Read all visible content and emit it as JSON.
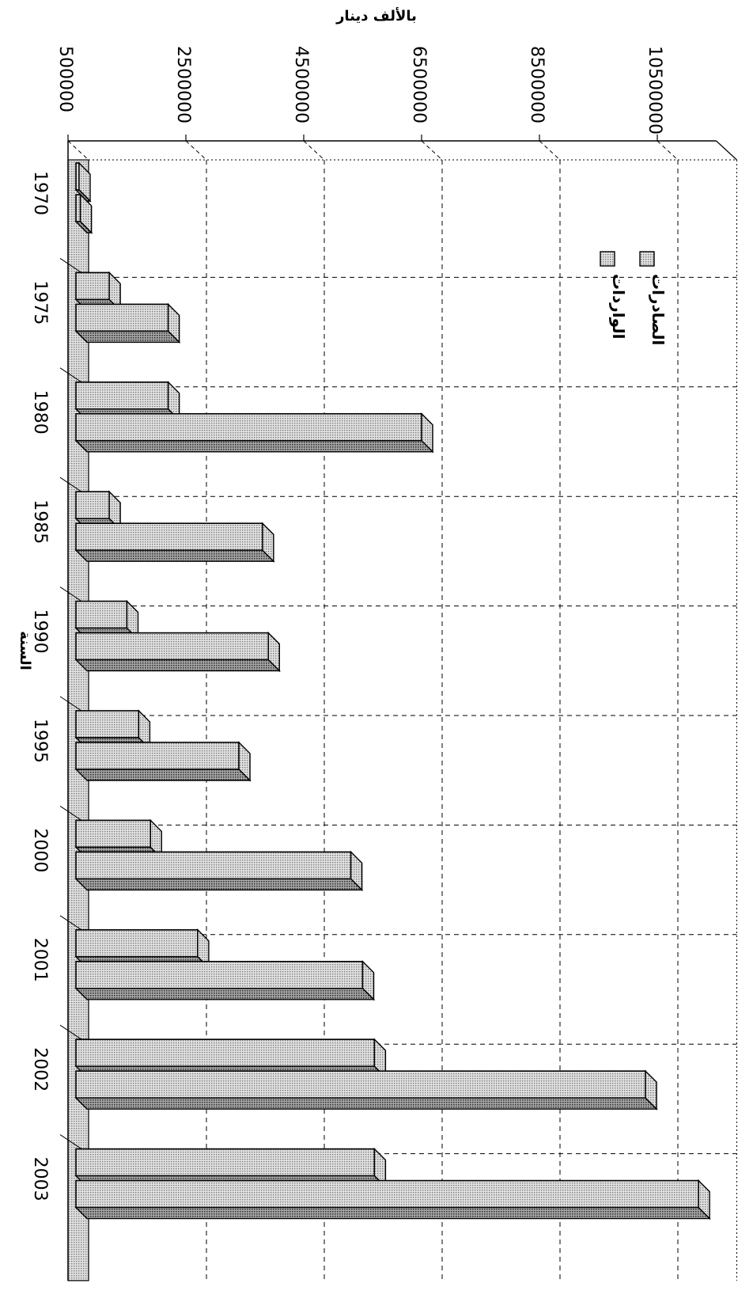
{
  "chart_data": {
    "type": "bar",
    "orientation": "horizontal-3d",
    "title": "",
    "xlabel": "بالألف دينار",
    "ylabel": "السنة",
    "xlim": [
      500000,
      11500000
    ],
    "ticks": [
      500000,
      2500000,
      4500000,
      6500000,
      8500000,
      10500000
    ],
    "grid": true,
    "legend_position": "top-right",
    "categories": [
      "1970",
      "1975",
      "1980",
      "1985",
      "1990",
      "1995",
      "2000",
      "2001",
      "2002",
      "2003"
    ],
    "series": [
      {
        "name": "الصادرات",
        "values": [
          190000,
          1200000,
          2200000,
          1200000,
          1500000,
          1700000,
          1900000,
          2700000,
          5700000,
          5700000
        ]
      },
      {
        "name": "الواردات",
        "values": [
          710000,
          2200000,
          6500000,
          3800000,
          3900000,
          3400000,
          5300000,
          5500000,
          10300000,
          11200000
        ]
      }
    ],
    "colors": {
      "bar_front": "#d4d4d4",
      "bar_top": "#8a8a8a",
      "bar_side": "#b0b0b0",
      "floor": "#cfcfcf",
      "grid": "#000000"
    }
  }
}
